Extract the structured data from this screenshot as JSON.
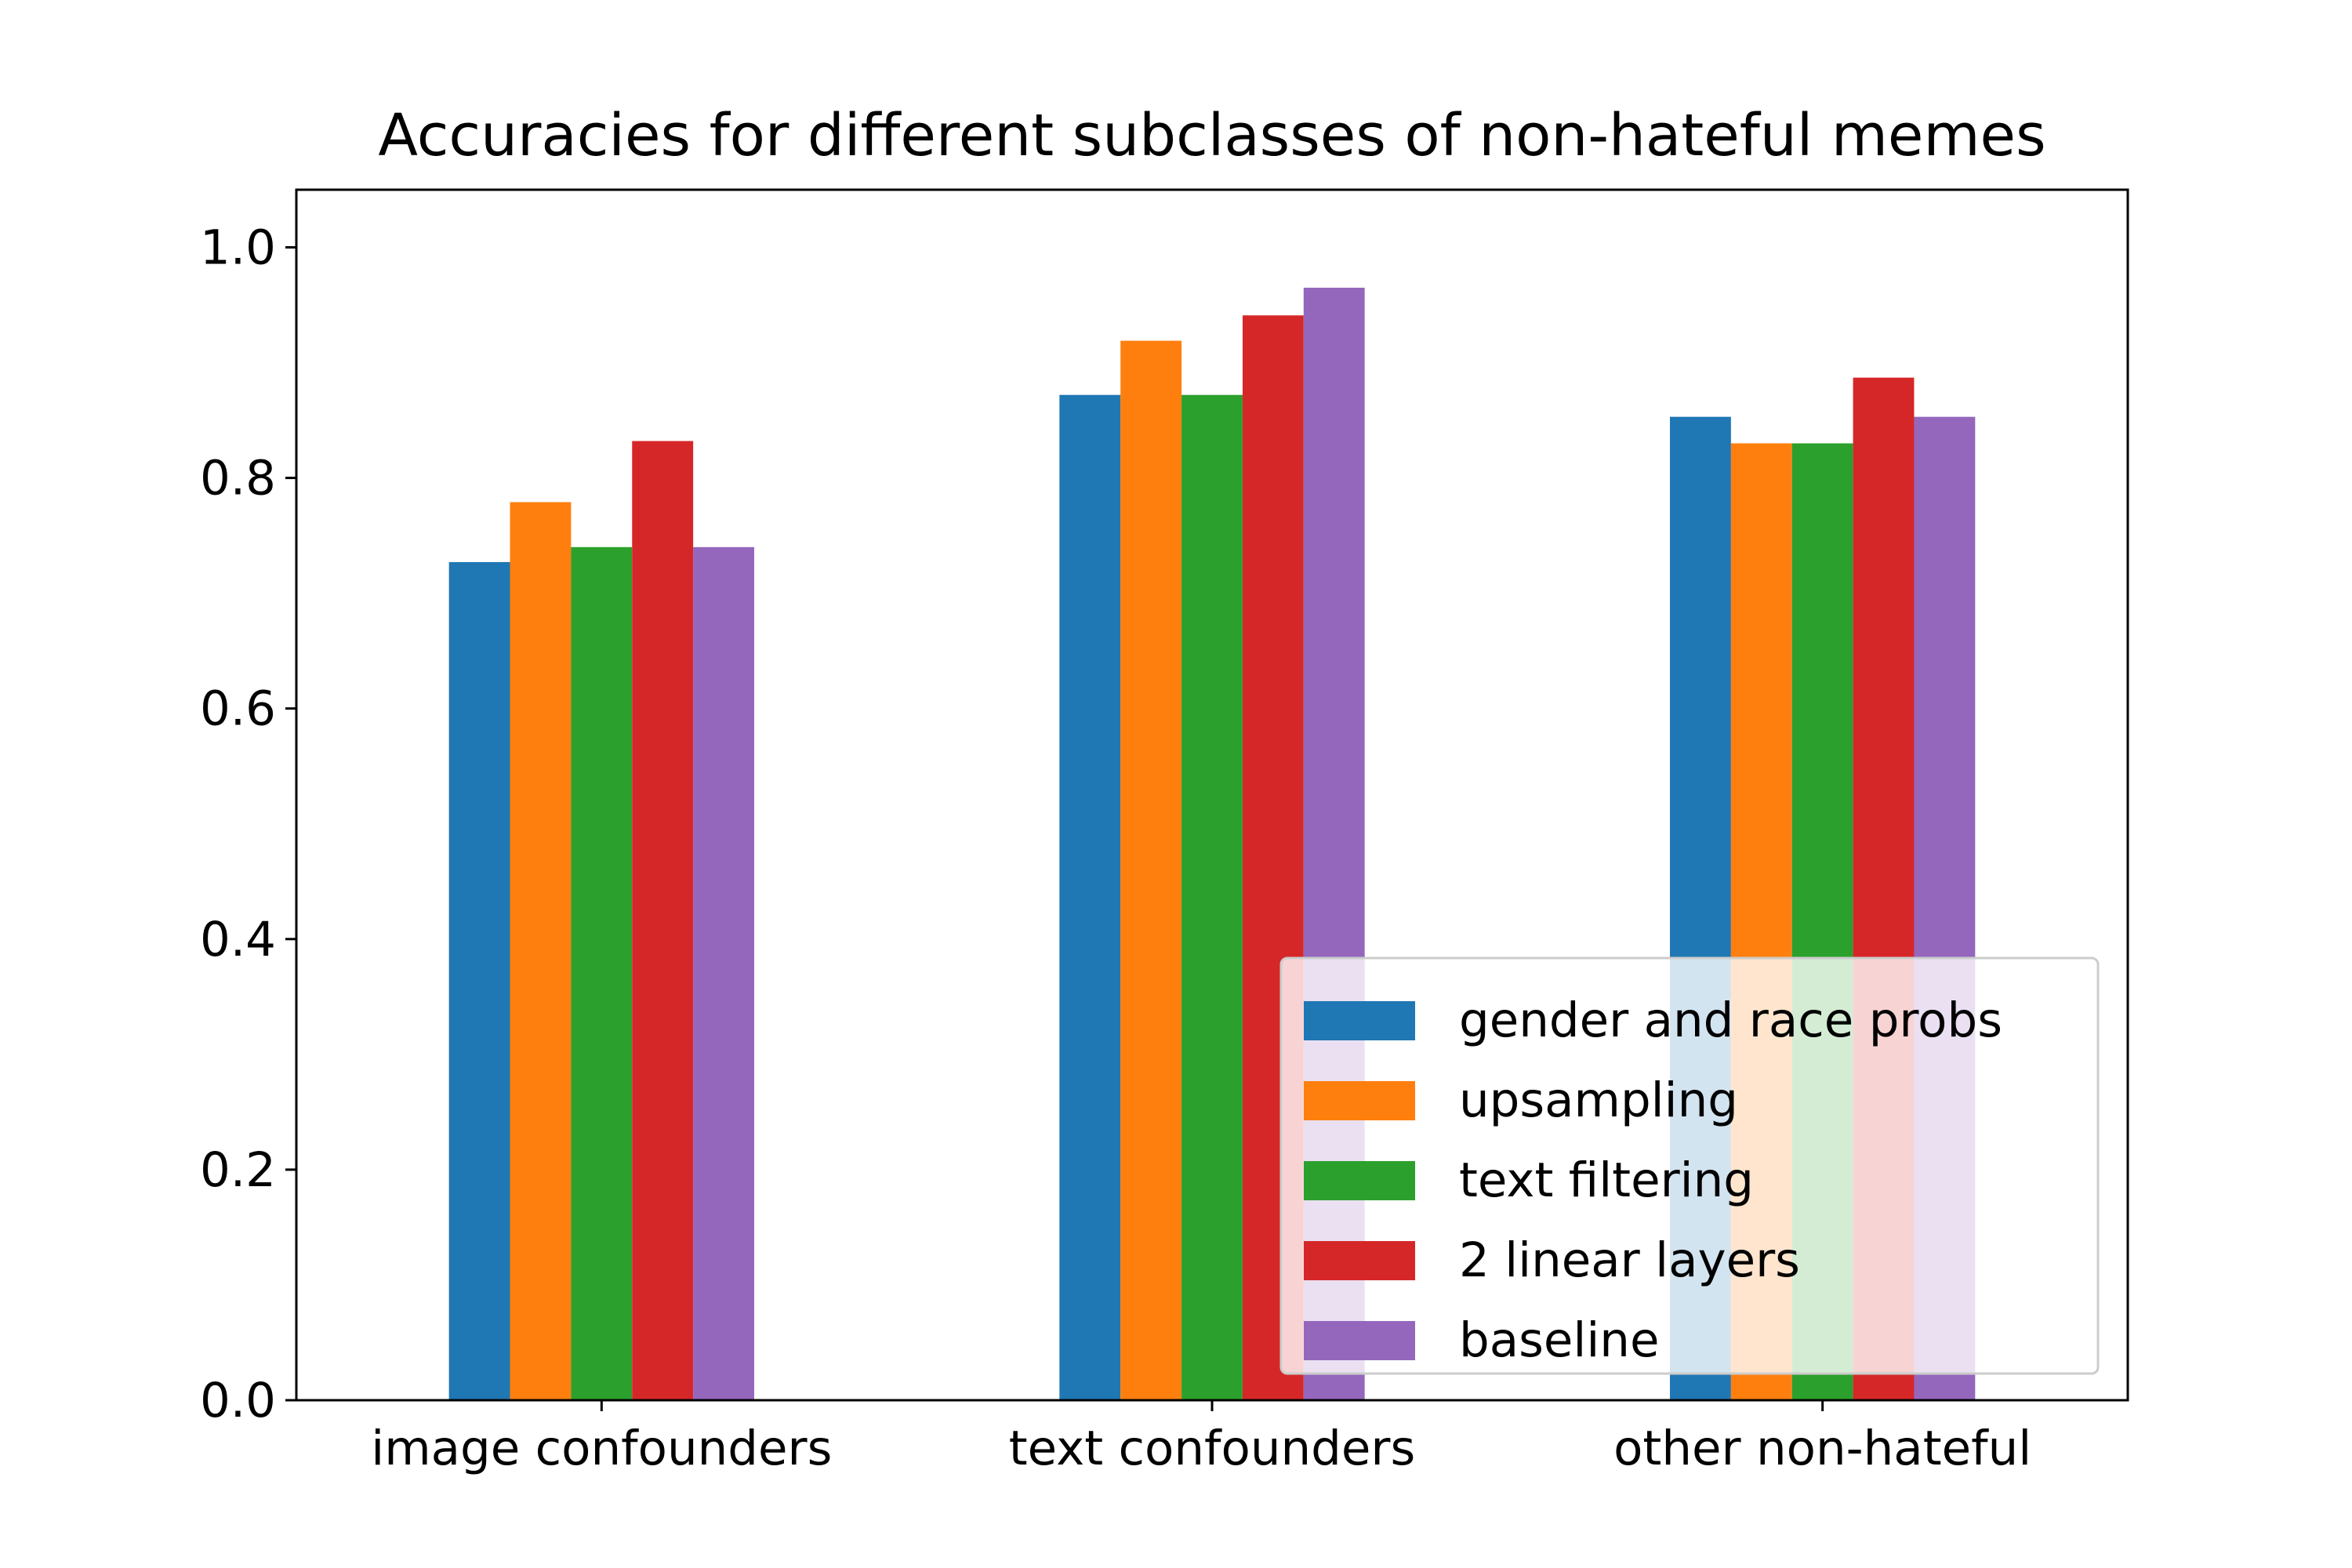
{
  "chart_data": {
    "type": "bar",
    "title": "Accuracies for different subclasses of non-hateful memes",
    "xlabel": "",
    "ylabel": "",
    "categories": [
      "image confounders",
      "text confounders",
      "other non-hateful"
    ],
    "series": [
      {
        "name": "gender and race probs",
        "color": "#1f77b4",
        "values": [
          0.727,
          0.872,
          0.853
        ]
      },
      {
        "name": "upsampling",
        "color": "#ff7f0e",
        "values": [
          0.779,
          0.919,
          0.83
        ]
      },
      {
        "name": "text filtering",
        "color": "#2ca02c",
        "values": [
          0.74,
          0.872,
          0.83
        ]
      },
      {
        "name": "2 linear layers",
        "color": "#d62728",
        "values": [
          0.832,
          0.941,
          0.887
        ]
      },
      {
        "name": "baseline",
        "color": "#9467bd",
        "values": [
          0.74,
          0.965,
          0.853
        ]
      }
    ],
    "ylim": [
      0,
      1.0
    ],
    "yticks": [
      "0.0",
      "0.2",
      "0.4",
      "0.6",
      "0.8",
      "1.0"
    ],
    "grid": false,
    "legend_position": "lower-right"
  }
}
